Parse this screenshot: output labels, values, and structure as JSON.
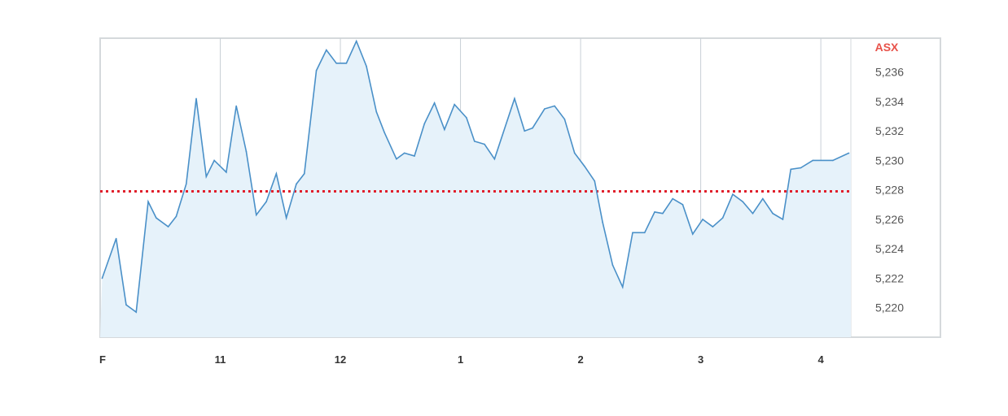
{
  "chart_data": {
    "type": "area",
    "exchange_label": "ASX",
    "x_tick_labels": [
      {
        "time": "10:00",
        "label": "F"
      },
      {
        "time": "11:00",
        "label": "11"
      },
      {
        "time": "12:00",
        "label": "12"
      },
      {
        "time": "13:00",
        "label": "1"
      },
      {
        "time": "14:00",
        "label": "2"
      },
      {
        "time": "15:00",
        "label": "3"
      },
      {
        "time": "16:00",
        "label": "4"
      }
    ],
    "y_ticks": [
      5220,
      5222,
      5224,
      5226,
      5228,
      5230,
      5232,
      5234,
      5236
    ],
    "y_tick_labels": [
      "5,220",
      "5,222",
      "5,224",
      "5,226",
      "5,228",
      "5,230",
      "5,232",
      "5,234",
      "5,236"
    ],
    "xlim": [
      "10:00",
      "16:15"
    ],
    "ylim": [
      5218,
      5238.3
    ],
    "grid": "vertical",
    "reference_line": {
      "value": 5227.9,
      "style": "dotted",
      "color": "#e0202c"
    },
    "colors": {
      "line": "#4a90c8",
      "fill": "#e6f2fa",
      "exchange_label": "#e8524a",
      "frame": "#d5d9dc",
      "grid": "#c8d0d6"
    },
    "series": [
      {
        "x": [
          "10:01",
          "10:08",
          "10:13",
          "10:18",
          "10:24",
          "10:28",
          "10:34",
          "10:38",
          "10:43",
          "10:48",
          "10:53",
          "10:57",
          "11:03",
          "11:08",
          "11:13",
          "11:18",
          "11:23",
          "11:28",
          "11:33",
          "11:38",
          "11:42",
          "11:48",
          "11:53",
          "11:58",
          "12:03",
          "12:08",
          "12:13",
          "12:18",
          "12:22",
          "12:28",
          "12:32",
          "12:37",
          "12:42",
          "12:47",
          "12:52",
          "12:57",
          "13:03",
          "13:07",
          "13:12",
          "13:17",
          "13:27",
          "13:32",
          "13:36",
          "13:42",
          "13:47",
          "13:52",
          "13:57",
          "14:02",
          "14:07",
          "14:11",
          "14:16",
          "14:21",
          "14:26",
          "14:32",
          "14:37",
          "14:41",
          "14:46",
          "14:51",
          "14:56",
          "15:01",
          "15:06",
          "15:11",
          "15:16",
          "15:21",
          "15:26",
          "15:31",
          "15:36",
          "15:41",
          "15:45",
          "15:50",
          "15:56",
          "16:06",
          "16:14"
        ],
        "values": [
          5222.0,
          5224.7,
          5220.2,
          5219.7,
          5227.2,
          5226.1,
          5225.5,
          5226.2,
          5228.4,
          5234.2,
          5228.9,
          5230.0,
          5229.2,
          5233.7,
          5230.6,
          5226.3,
          5227.2,
          5229.1,
          5226.1,
          5228.4,
          5229.1,
          5236.1,
          5237.5,
          5236.6,
          5236.6,
          5238.1,
          5236.4,
          5233.3,
          5231.9,
          5230.1,
          5230.5,
          5230.3,
          5232.5,
          5233.9,
          5232.1,
          5233.8,
          5232.9,
          5231.3,
          5231.1,
          5230.1,
          5234.2,
          5232.0,
          5232.2,
          5233.5,
          5233.7,
          5232.8,
          5230.5,
          5229.6,
          5228.6,
          5225.8,
          5222.9,
          5221.4,
          5225.1,
          5225.1,
          5226.5,
          5226.4,
          5227.4,
          5227.0,
          5225.0,
          5226.0,
          5225.5,
          5226.1,
          5227.7,
          5227.2,
          5226.4,
          5227.4,
          5226.4,
          5226.0,
          5229.4,
          5229.5,
          5230.0,
          5230.0,
          5230.5
        ]
      }
    ]
  }
}
